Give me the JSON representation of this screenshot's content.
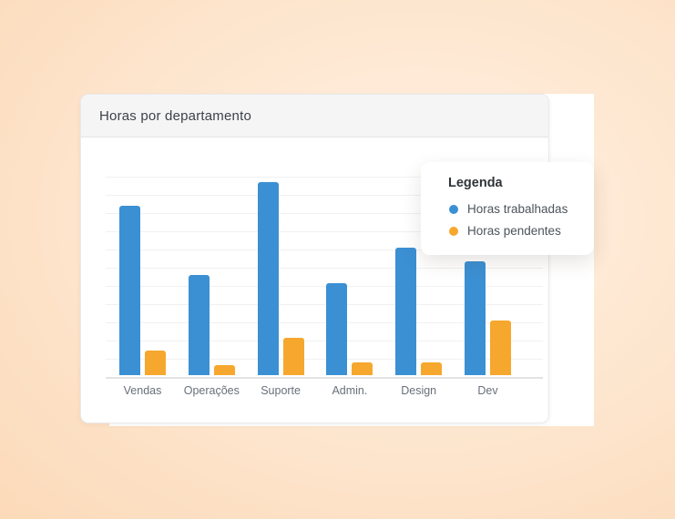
{
  "card": {
    "title": "Horas por departamento"
  },
  "legend": {
    "title": "Legenda",
    "items": [
      {
        "label": "Horas trabalhadas",
        "color": "#3b90d3"
      },
      {
        "label": "Horas pendentes",
        "color": "#f6a72e"
      }
    ]
  },
  "chart_data": {
    "type": "bar",
    "title": "Horas por departamento",
    "categories": [
      "Vendas",
      "Operações",
      "Suporte",
      "Admin.",
      "Design",
      "Dev"
    ],
    "series": [
      {
        "name": "Horas trabalhadas",
        "color": "#3b90d3",
        "values": [
          105,
          62,
          120,
          57,
          79,
          71
        ]
      },
      {
        "name": "Horas pendentes",
        "color": "#f6a72e",
        "values": [
          15,
          6,
          23,
          8,
          8,
          34
        ]
      }
    ],
    "xlabel": "",
    "ylabel": "",
    "ylim": [
      0,
      135
    ],
    "grid": true,
    "legend_position": "top-right"
  },
  "colors": {
    "background_outer": "#fbd2ab",
    "background_center": "#fff1e3",
    "card_header_bg": "#f5f5f6",
    "card_border": "#e9e9ec",
    "grid_line": "#f1f1f3",
    "axis_line": "#e3e3e6",
    "axis_label": "#68707a"
  }
}
